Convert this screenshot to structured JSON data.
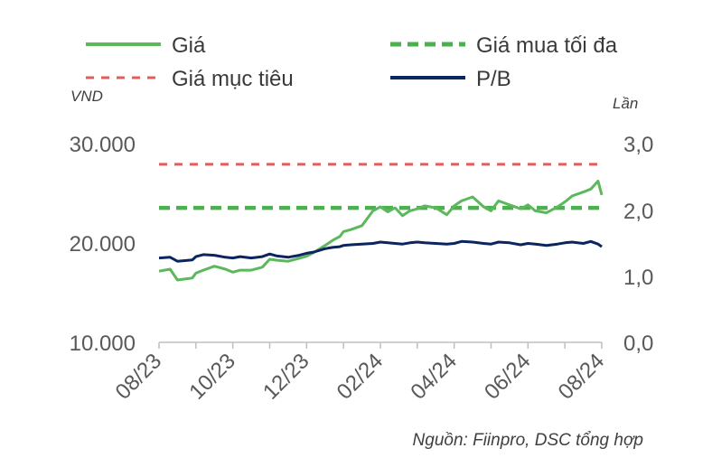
{
  "chart_data": {
    "type": "line",
    "left_axis_unit": "VND",
    "right_axis_unit": "Lần",
    "source": "Nguồn: Fiinpro, DSC tổng hợp",
    "x_labels": [
      "08/23",
      "10/23",
      "12/23",
      "02/24",
      "04/24",
      "06/24",
      "08/24"
    ],
    "x_range": [
      0,
      12
    ],
    "y_left_ticks": [
      "10.000",
      "20.000",
      "30.000"
    ],
    "y_left_range": [
      10000,
      30000
    ],
    "y_right_ticks": [
      "0,0",
      "1,0",
      "2,0",
      "3,0"
    ],
    "y_right_range": [
      0,
      3
    ],
    "grid": false,
    "legend": [
      {
        "name": "Giá",
        "color": "#5cb85c",
        "style": "solid"
      },
      {
        "name": "Giá mua tối đa",
        "color": "#4caf50",
        "style": "dashed"
      },
      {
        "name": "Giá mục tiêu",
        "color": "#e35d5d",
        "style": "dashed"
      },
      {
        "name": "P/B",
        "color": "#0b2560",
        "style": "solid"
      }
    ],
    "series": [
      {
        "name": "Giá",
        "axis": "left",
        "color": "#5cb85c",
        "x": [
          0,
          0.3,
          0.5,
          0.7,
          0.9,
          1.0,
          1.2,
          1.5,
          1.8,
          2.0,
          2.2,
          2.5,
          2.8,
          3.0,
          3.2,
          3.5,
          3.8,
          4.0,
          4.2,
          4.5,
          4.7,
          4.9,
          5.0,
          5.2,
          5.5,
          5.8,
          6.0,
          6.2,
          6.4,
          6.6,
          6.8,
          7.0,
          7.2,
          7.5,
          7.8,
          8.0,
          8.2,
          8.5,
          8.8,
          9.0,
          9.2,
          9.5,
          9.8,
          10.0,
          10.2,
          10.5,
          10.8,
          11.0,
          11.2,
          11.5,
          11.7,
          11.9,
          12.0
        ],
        "y": [
          17200,
          17400,
          16300,
          16400,
          16500,
          17000,
          17300,
          17700,
          17400,
          17100,
          17300,
          17300,
          17600,
          18400,
          18300,
          18200,
          18500,
          18700,
          19100,
          19800,
          20300,
          20700,
          21200,
          21400,
          21800,
          23300,
          23700,
          23200,
          23600,
          22800,
          23300,
          23500,
          23800,
          23600,
          22900,
          23800,
          24300,
          24700,
          23700,
          23300,
          24300,
          23900,
          23500,
          23900,
          23300,
          23100,
          23700,
          24200,
          24800,
          25200,
          25500,
          26300,
          24900
        ]
      },
      {
        "name": "Giá mua tối đa",
        "axis": "left",
        "color": "#4caf50",
        "x": [
          0,
          12
        ],
        "y": [
          23600,
          23600
        ]
      },
      {
        "name": "Giá mục tiêu",
        "axis": "left",
        "color": "#e35d5d",
        "x": [
          0,
          12
        ],
        "y": [
          28000,
          28000
        ]
      },
      {
        "name": "P/B",
        "axis": "right",
        "color": "#0b2560",
        "x": [
          0,
          0.3,
          0.5,
          0.7,
          0.9,
          1.0,
          1.2,
          1.5,
          1.8,
          2.0,
          2.2,
          2.5,
          2.8,
          3.0,
          3.2,
          3.5,
          3.8,
          4.0,
          4.2,
          4.5,
          4.7,
          4.9,
          5.0,
          5.2,
          5.5,
          5.8,
          6.0,
          6.2,
          6.4,
          6.6,
          6.8,
          7.0,
          7.2,
          7.5,
          7.8,
          8.0,
          8.2,
          8.5,
          8.8,
          9.0,
          9.2,
          9.5,
          9.8,
          10.0,
          10.2,
          10.5,
          10.8,
          11.0,
          11.2,
          11.5,
          11.7,
          11.9,
          12.0
        ],
        "y": [
          1.28,
          1.29,
          1.23,
          1.24,
          1.25,
          1.3,
          1.33,
          1.32,
          1.29,
          1.28,
          1.3,
          1.28,
          1.3,
          1.34,
          1.31,
          1.29,
          1.32,
          1.35,
          1.37,
          1.42,
          1.44,
          1.45,
          1.47,
          1.48,
          1.49,
          1.5,
          1.52,
          1.51,
          1.5,
          1.49,
          1.51,
          1.52,
          1.51,
          1.5,
          1.49,
          1.5,
          1.53,
          1.52,
          1.5,
          1.49,
          1.52,
          1.51,
          1.48,
          1.5,
          1.49,
          1.47,
          1.49,
          1.51,
          1.52,
          1.5,
          1.53,
          1.49,
          1.45
        ]
      }
    ]
  }
}
